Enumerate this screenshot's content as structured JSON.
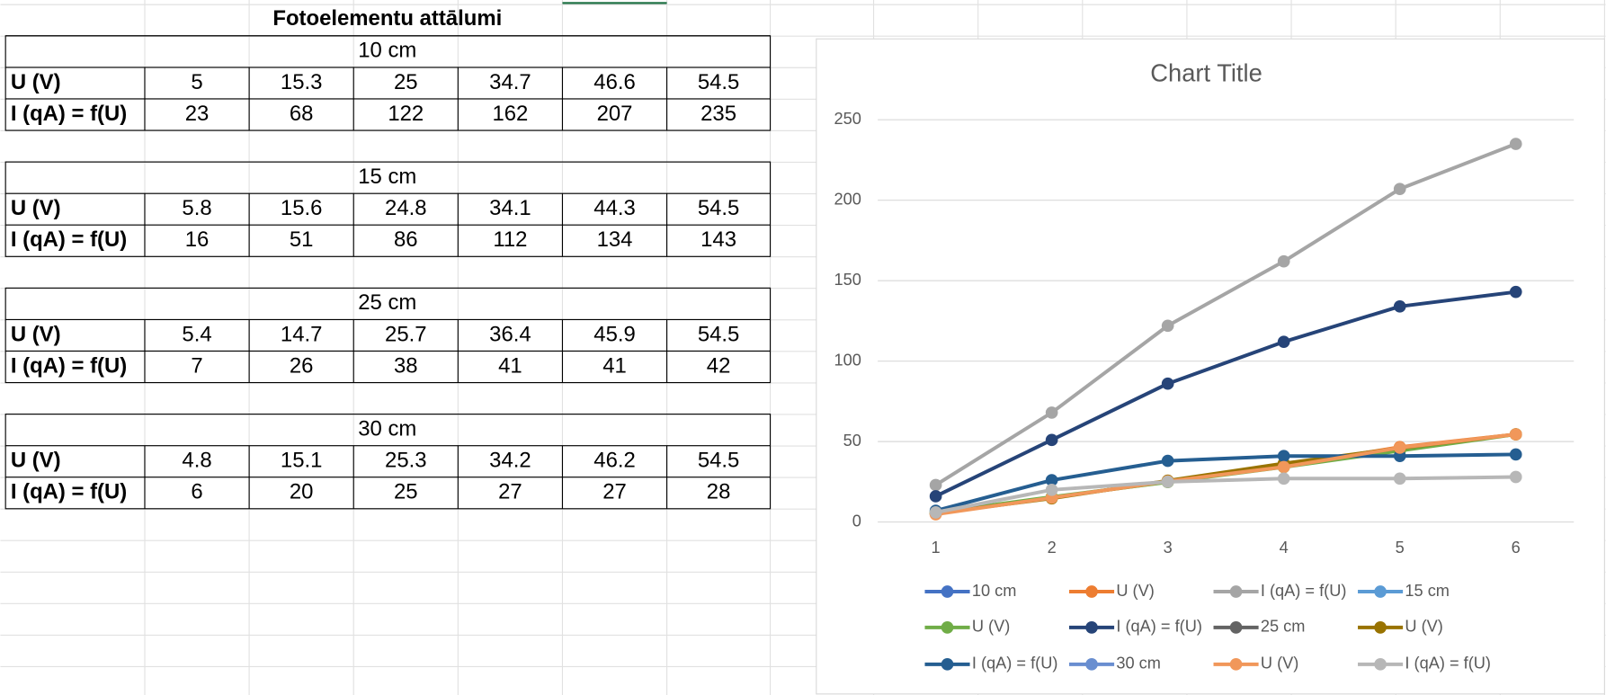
{
  "table": {
    "title": "Fotoelementu attālumi",
    "blocks": [
      {
        "label": "10 cm",
        "rows": [
          {
            "label": "U (V)",
            "values": [
              5,
              15.3,
              25,
              34.7,
              46.6,
              54.5
            ]
          },
          {
            "label": "I (qA) = f(U)",
            "values": [
              23,
              68,
              122,
              162,
              207,
              235
            ]
          }
        ]
      },
      {
        "label": "15 cm",
        "rows": [
          {
            "label": "U (V)",
            "values": [
              5.8,
              15.6,
              24.8,
              34.1,
              44.3,
              54.5
            ]
          },
          {
            "label": "I (qA) = f(U)",
            "values": [
              16,
              51,
              86,
              112,
              134,
              143
            ]
          }
        ]
      },
      {
        "label": "25 cm",
        "rows": [
          {
            "label": "U (V)",
            "values": [
              5.4,
              14.7,
              25.7,
              36.4,
              45.9,
              54.5
            ]
          },
          {
            "label": "I (qA) = f(U)",
            "values": [
              7,
              26,
              38,
              41,
              41,
              42
            ]
          }
        ]
      },
      {
        "label": "30 cm",
        "rows": [
          {
            "label": "U (V)",
            "values": [
              4.8,
              15.1,
              25.3,
              34.2,
              46.2,
              54.5
            ]
          },
          {
            "label": "I (qA) = f(U)",
            "values": [
              6,
              20,
              25,
              27,
              27,
              28
            ]
          }
        ]
      }
    ]
  },
  "chart_data": {
    "type": "line",
    "title": "Chart Title",
    "categories": [
      "1",
      "2",
      "3",
      "4",
      "5",
      "6"
    ],
    "ylim": [
      0,
      250
    ],
    "yticks": [
      0,
      50,
      100,
      150,
      200,
      250
    ],
    "grid": true,
    "legend": "bottom",
    "series": [
      {
        "name": "10 cm",
        "color": "#4472c4",
        "values": [
          null,
          null,
          null,
          null,
          null,
          null
        ]
      },
      {
        "name": "U (V)",
        "color": "#ed7d31",
        "values": [
          5,
          15.3,
          25,
          34.7,
          46.6,
          54.5
        ]
      },
      {
        "name": "I (qA) = f(U)",
        "color": "#a5a5a5",
        "values": [
          23,
          68,
          122,
          162,
          207,
          235
        ]
      },
      {
        "name": "15 cm",
        "color": "#5b9bd5",
        "values": [
          null,
          null,
          null,
          null,
          null,
          null
        ]
      },
      {
        "name": "U (V)",
        "color": "#70ad47",
        "values": [
          5.8,
          15.6,
          24.8,
          34.1,
          44.3,
          54.5
        ]
      },
      {
        "name": "I (qA) = f(U)",
        "color": "#264478",
        "values": [
          16,
          51,
          86,
          112,
          134,
          143
        ]
      },
      {
        "name": "25 cm",
        "color": "#636363",
        "values": [
          null,
          null,
          null,
          null,
          null,
          null
        ]
      },
      {
        "name": "U (V)",
        "color": "#997300",
        "values": [
          5.4,
          14.7,
          25.7,
          36.4,
          45.9,
          54.5
        ]
      },
      {
        "name": "I (qA) = f(U)",
        "color": "#255e91",
        "values": [
          7,
          26,
          38,
          41,
          41,
          42
        ]
      },
      {
        "name": "30 cm",
        "color": "#698ed0",
        "values": [
          null,
          null,
          null,
          null,
          null,
          null
        ]
      },
      {
        "name": "U (V)",
        "color": "#f1975a",
        "values": [
          4.8,
          15.1,
          25.3,
          34.2,
          46.2,
          54.5
        ]
      },
      {
        "name": "I (qA) = f(U)",
        "color": "#b7b7b7",
        "values": [
          6,
          20,
          25,
          27,
          27,
          28
        ]
      }
    ]
  }
}
